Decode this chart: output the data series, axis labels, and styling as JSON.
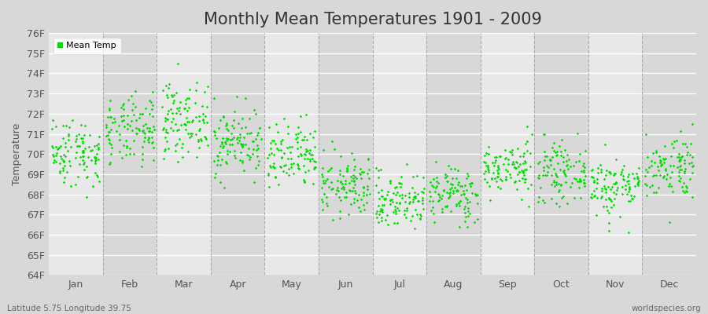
{
  "title": "Monthly Mean Temperatures 1901 - 2009",
  "ylabel": "Temperature",
  "xlabel_bottom_left": "Latitude 5.75 Longitude 39.75",
  "xlabel_bottom_right": "worldspecies.org",
  "ylim": [
    64,
    76
  ],
  "yticks": [
    64,
    65,
    66,
    67,
    68,
    69,
    70,
    71,
    72,
    73,
    74,
    75,
    76
  ],
  "ytick_labels": [
    "64F",
    "65F",
    "66F",
    "67F",
    "68F",
    "69F",
    "70F",
    "71F",
    "72F",
    "73F",
    "74F",
    "75F",
    "76F"
  ],
  "months": [
    "Jan",
    "Feb",
    "Mar",
    "Apr",
    "May",
    "Jun",
    "Jul",
    "Aug",
    "Sep",
    "Oct",
    "Nov",
    "Dec"
  ],
  "dot_color": "#00dd00",
  "dot_size": 3,
  "legend_label": "Mean Temp",
  "background_color": "#d8d8d8",
  "plot_bg_color_light": "#e8e8e8",
  "plot_bg_color_dark": "#d8d8d8",
  "grid_color": "#ffffff",
  "dashed_line_color": "#aaaaaa",
  "title_fontsize": 15,
  "axis_fontsize": 9,
  "tick_fontsize": 9,
  "n_years": 109,
  "seed": 42,
  "monthly_means": [
    70.1,
    71.1,
    71.7,
    70.6,
    69.8,
    68.4,
    67.7,
    68.0,
    69.3,
    69.1,
    68.4,
    69.4
  ],
  "monthly_stds": [
    0.85,
    0.85,
    0.9,
    0.85,
    0.85,
    0.75,
    0.7,
    0.7,
    0.65,
    0.7,
    0.75,
    0.8
  ]
}
